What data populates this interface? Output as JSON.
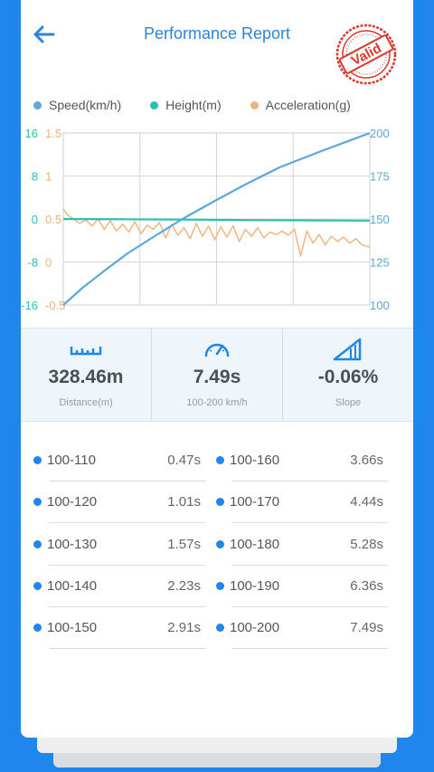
{
  "header": {
    "title": "Performance Report",
    "stamp_text": "Valid"
  },
  "colors": {
    "accent": "#2e83d8",
    "speed": "#5aa8dc",
    "height": "#2bbfb2",
    "acceleration": "#f0b27a",
    "stamp": "#d9382a"
  },
  "legend": [
    {
      "label": "Speed(km/h)",
      "color": "#5aa8dc"
    },
    {
      "label": "Height(m)",
      "color": "#2bbfb2"
    },
    {
      "label": "Acceleration(g)",
      "color": "#f0b27a"
    }
  ],
  "chart_data": {
    "type": "line",
    "grid": true,
    "xlim": [
      0,
      7.49
    ],
    "axes": {
      "left_height": {
        "ticks": [
          "16",
          "8",
          "0",
          "-8",
          "-16"
        ],
        "ylim": [
          -16,
          16
        ]
      },
      "left_acceleration": {
        "ticks": [
          "1.5",
          "1",
          "0.5",
          "0",
          "-0.5"
        ],
        "ylim": [
          -0.5,
          1.5
        ]
      },
      "right_speed": {
        "ticks": [
          "200",
          "175",
          "150",
          "125",
          "100"
        ],
        "ylim": [
          100,
          200
        ]
      }
    },
    "series": [
      {
        "name": "Speed(km/h)",
        "axis": "right_speed",
        "x": [
          0,
          0.47,
          1.01,
          1.57,
          2.23,
          2.91,
          3.66,
          4.44,
          5.28,
          6.36,
          7.49
        ],
        "y": [
          100,
          110,
          120,
          130,
          140,
          150,
          160,
          170,
          180,
          190,
          200
        ]
      },
      {
        "name": "Height(m)",
        "axis": "left_height",
        "x": [
          0,
          1.5,
          3,
          4.5,
          6,
          7.49
        ],
        "y": [
          0,
          -0.05,
          -0.1,
          -0.2,
          -0.25,
          -0.3
        ]
      },
      {
        "name": "Acceleration(g)",
        "axis": "left_acceleration",
        "x": [
          0,
          0.1,
          0.25,
          0.4,
          0.55,
          0.7,
          0.85,
          1.0,
          1.15,
          1.3,
          1.45,
          1.6,
          1.75,
          1.9,
          2.05,
          2.2,
          2.35,
          2.5,
          2.65,
          2.8,
          2.95,
          3.1,
          3.25,
          3.4,
          3.55,
          3.7,
          3.85,
          4.0,
          4.15,
          4.3,
          4.45,
          4.6,
          4.75,
          4.9,
          5.05,
          5.2,
          5.35,
          5.5,
          5.65,
          5.8,
          5.95,
          6.1,
          6.25,
          6.4,
          6.55,
          6.7,
          6.85,
          7.0,
          7.15,
          7.3,
          7.49
        ],
        "y": [
          0.62,
          0.55,
          0.5,
          0.45,
          0.49,
          0.42,
          0.5,
          0.38,
          0.48,
          0.36,
          0.44,
          0.35,
          0.47,
          0.33,
          0.43,
          0.38,
          0.46,
          0.28,
          0.44,
          0.31,
          0.4,
          0.27,
          0.45,
          0.3,
          0.42,
          0.26,
          0.41,
          0.29,
          0.42,
          0.24,
          0.38,
          0.3,
          0.4,
          0.28,
          0.35,
          0.32,
          0.36,
          0.31,
          0.38,
          0.07,
          0.36,
          0.22,
          0.32,
          0.2,
          0.3,
          0.24,
          0.29,
          0.22,
          0.27,
          0.2,
          0.17
        ]
      }
    ]
  },
  "stats": [
    {
      "icon": "ruler-icon",
      "value": "328.46m",
      "label": "Distance(m)"
    },
    {
      "icon": "speedometer-icon",
      "value": "7.49s",
      "label": "100-200 km/h"
    },
    {
      "icon": "slope-icon",
      "value": "-0.06%",
      "label": "Slope"
    }
  ],
  "splits": [
    [
      {
        "range": "100-110",
        "time": "0.47s"
      },
      {
        "range": "100-160",
        "time": "3.66s"
      }
    ],
    [
      {
        "range": "100-120",
        "time": "1.01s"
      },
      {
        "range": "100-170",
        "time": "4.44s"
      }
    ],
    [
      {
        "range": "100-130",
        "time": "1.57s"
      },
      {
        "range": "100-180",
        "time": "5.28s"
      }
    ],
    [
      {
        "range": "100-140",
        "time": "2.23s"
      },
      {
        "range": "100-190",
        "time": "6.36s"
      }
    ],
    [
      {
        "range": "100-150",
        "time": "2.91s"
      },
      {
        "range": "100-200",
        "time": "7.49s"
      }
    ]
  ]
}
